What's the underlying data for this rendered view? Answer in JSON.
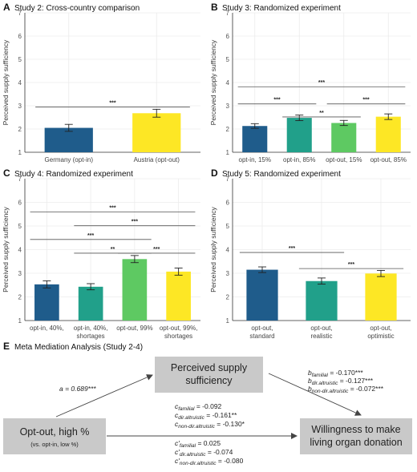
{
  "chart_data": [
    {
      "type": "bar",
      "panel": "A",
      "title": "Study 2: Cross-country comparison",
      "ylabel": "Perceived supply sufficiency",
      "ylim": [
        1,
        7
      ],
      "yticks": [
        1,
        2,
        3,
        4,
        5,
        6,
        7
      ],
      "categories": [
        "Germany (opt-in)",
        "Austria (opt-out)"
      ],
      "values": [
        2.05,
        2.68
      ],
      "errors": [
        0.15,
        0.17
      ],
      "colors": [
        "#1f5c8b",
        "#fde725"
      ],
      "significance": [
        {
          "from": 0,
          "to": 1,
          "label": "***"
        }
      ]
    },
    {
      "type": "bar",
      "panel": "B",
      "title": "Study 3: Randomized experiment",
      "ylabel": "Perceived supply sufficiency",
      "ylim": [
        1,
        7
      ],
      "yticks": [
        1,
        2,
        3,
        4,
        5,
        6,
        7
      ],
      "categories": [
        "opt-in, 15%",
        "opt-in, 85%",
        "opt-out, 15%",
        "opt-out, 85%"
      ],
      "values": [
        2.13,
        2.48,
        2.26,
        2.53
      ],
      "errors": [
        0.1,
        0.12,
        0.11,
        0.12
      ],
      "colors": [
        "#1f5c8b",
        "#21a08a",
        "#5ec962",
        "#fde725"
      ],
      "significance": [
        {
          "from": 0,
          "to": 1,
          "label": "***"
        },
        {
          "from": 2,
          "to": 3,
          "label": "***"
        },
        {
          "from": 1,
          "to": 2,
          "label": "**"
        },
        {
          "from": 0,
          "to": 3,
          "label": "***"
        }
      ]
    },
    {
      "type": "bar",
      "panel": "C",
      "title": "Study 4: Randomized experiment",
      "ylabel": "Perceived supply sufficiency",
      "ylim": [
        1,
        7
      ],
      "yticks": [
        1,
        2,
        3,
        4,
        5,
        6,
        7
      ],
      "categories": [
        "opt-in, 40%,",
        "opt-in, 40%, shortages",
        "opt-out, 99%",
        "opt-out, 99%, shortages"
      ],
      "cat_lines": [
        [
          "opt-in, 40%,"
        ],
        [
          "opt-in, 40%,",
          "shortages"
        ],
        [
          "opt-out, 99%"
        ],
        [
          "opt-out, 99%,",
          "shortages"
        ]
      ],
      "values": [
        2.53,
        2.43,
        3.6,
        3.07
      ],
      "errors": [
        0.15,
        0.13,
        0.15,
        0.15
      ],
      "colors": [
        "#1f5c8b",
        "#21a08a",
        "#5ec962",
        "#fde725"
      ],
      "significance": [
        {
          "from": 1,
          "to": 2,
          "label": "**"
        },
        {
          "from": 2,
          "to": 3,
          "label": "***"
        },
        {
          "from": 0,
          "to": 2,
          "label": "***"
        },
        {
          "from": 1,
          "to": 3,
          "label": "***"
        },
        {
          "from": 0,
          "to": 3,
          "label": "***"
        }
      ]
    },
    {
      "type": "bar",
      "panel": "D",
      "title": "Study 5: Randomized experiment",
      "ylabel": "Perceived supply sufficiency",
      "ylim": [
        1,
        7
      ],
      "yticks": [
        1,
        2,
        3,
        4,
        5,
        6,
        7
      ],
      "categories": [
        "opt-out, standard",
        "opt-out, realistic",
        "opt-out, optimistic"
      ],
      "cat_lines": [
        [
          "opt-out,",
          "standard"
        ],
        [
          "opt-out,",
          "realistic"
        ],
        [
          "opt-out,",
          "optimistic"
        ]
      ],
      "values": [
        3.15,
        2.67,
        2.99
      ],
      "errors": [
        0.12,
        0.13,
        0.13
      ],
      "colors": [
        "#1f5c8b",
        "#21a08a",
        "#fde725"
      ],
      "significance": [
        {
          "from": 0,
          "to": 1,
          "label": "***"
        },
        {
          "from": 1,
          "to": 2,
          "label": "***"
        }
      ]
    }
  ],
  "mediation": {
    "label": "E",
    "title": "Meta Mediation Analysis (Study 2-4)",
    "mediator_line1": "Perceived supply",
    "mediator_line2": "sufficiency",
    "predictor_line1": "Opt-out, high %",
    "predictor_sub": "(vs. opt-in, low %)",
    "outcome_line1": "Willingness to make",
    "outcome_line2": "living organ donation",
    "a_path": "a = 0.689***",
    "b_paths": [
      {
        "sym": "b",
        "sub": "familial",
        "val": " = -0.170***"
      },
      {
        "sym": "b",
        "sub": "dir.altruistic",
        "val": " = -0.127***"
      },
      {
        "sym": "b",
        "sub": "non-dir.altruistic",
        "val": " = -0.072***"
      }
    ],
    "c_paths": [
      {
        "sym": "c",
        "sub": "familial",
        "val": " = -0.092"
      },
      {
        "sym": "c",
        "sub": "dir.altruistic",
        "val": " = -0.161**"
      },
      {
        "sym": "c",
        "sub": "non-dir.altruistic",
        "val": " = -0.130*"
      }
    ],
    "cprime_paths": [
      {
        "sym": "c'",
        "sub": "familial",
        "val": " = 0.025"
      },
      {
        "sym": "c'",
        "sub": "dir.altruistic",
        "val": " = -0.074"
      },
      {
        "sym": "c'",
        "sub": "non-dir.altruistic",
        "val": " = -0.080"
      }
    ]
  }
}
